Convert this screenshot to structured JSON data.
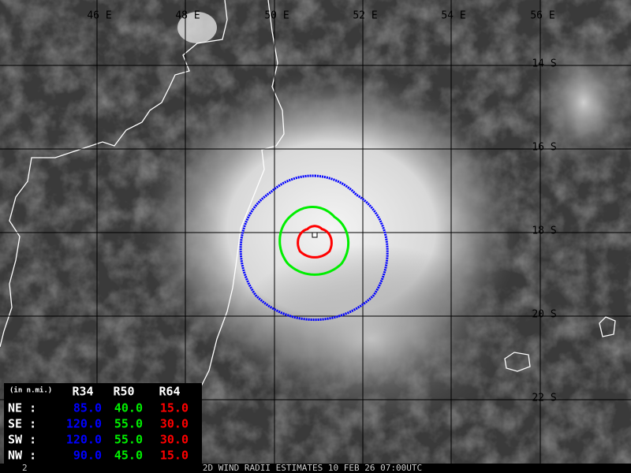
{
  "map": {
    "lon_labels": [
      "46 E",
      "48 E",
      "50 E",
      "52 E",
      "54 E",
      "56 E"
    ],
    "lat_labels": [
      "14 S",
      "16 S",
      "18 S",
      "20 S",
      "22 S"
    ]
  },
  "table": {
    "unit": "(in n.mi.)",
    "columns": [
      "R34",
      "R50",
      "R64"
    ],
    "rows": [
      {
        "label": "NE :",
        "values": [
          "85.0",
          "40.0",
          "15.0"
        ]
      },
      {
        "label": "SE :",
        "values": [
          "120.0",
          "55.0",
          "30.0"
        ]
      },
      {
        "label": "SW :",
        "values": [
          "120.0",
          "55.0",
          "30.0"
        ]
      },
      {
        "label": "NW :",
        "values": [
          "90.0",
          "45.0",
          "15.0"
        ]
      }
    ]
  },
  "footer": {
    "frame": "2",
    "caption": "2D WIND RADII ESTIMATES 10 FEB 26 07:00UTC"
  }
}
